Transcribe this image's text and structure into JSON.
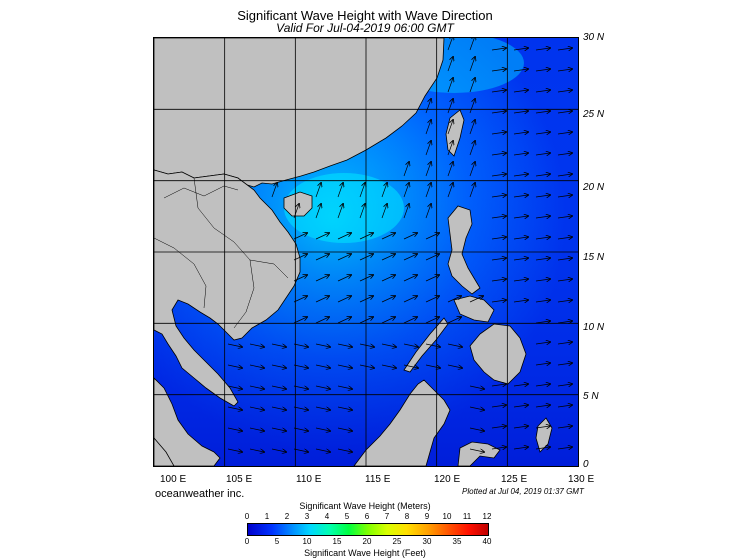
{
  "title": "Significant Wave Height with Wave Direction",
  "subtitle": "Valid For Jul-04-2019 06:00 GMT",
  "latitude_labels": [
    "30 N",
    "25 N",
    "20 N",
    "15 N",
    "10 N",
    "5 N",
    "0"
  ],
  "longitude_labels": [
    "100 E",
    "105 E",
    "110 E",
    "115 E",
    "120 E",
    "125 E",
    "130 E"
  ],
  "credit": "oceanweather inc.",
  "plotted": "Plotted at Jul 04, 2019 01:37 GMT",
  "colorbar": {
    "meters_title": "Significant Wave Height (Meters)",
    "feet_title": "Significant Wave Height (Feet)",
    "meters_ticks": [
      "0",
      "1",
      "2",
      "3",
      "4",
      "5",
      "6",
      "7",
      "8",
      "9",
      "10",
      "11",
      "12"
    ],
    "feet_ticks": [
      "0",
      "5",
      "10",
      "15",
      "20",
      "25",
      "30",
      "35",
      "40"
    ]
  },
  "colors": {
    "land": "#c0c0c0",
    "ocean_low": "#0000dd",
    "ocean_mid": "#0070ff",
    "ocean_high": "#00e0ff",
    "arrow": "#000000"
  },
  "map": {
    "lon_range": [
      100,
      130
    ],
    "lat_range": [
      0,
      30
    ],
    "wave_direction": "southwest monsoon; arrows point toward northeast",
    "max_wave_height_m": 3.5
  }
}
